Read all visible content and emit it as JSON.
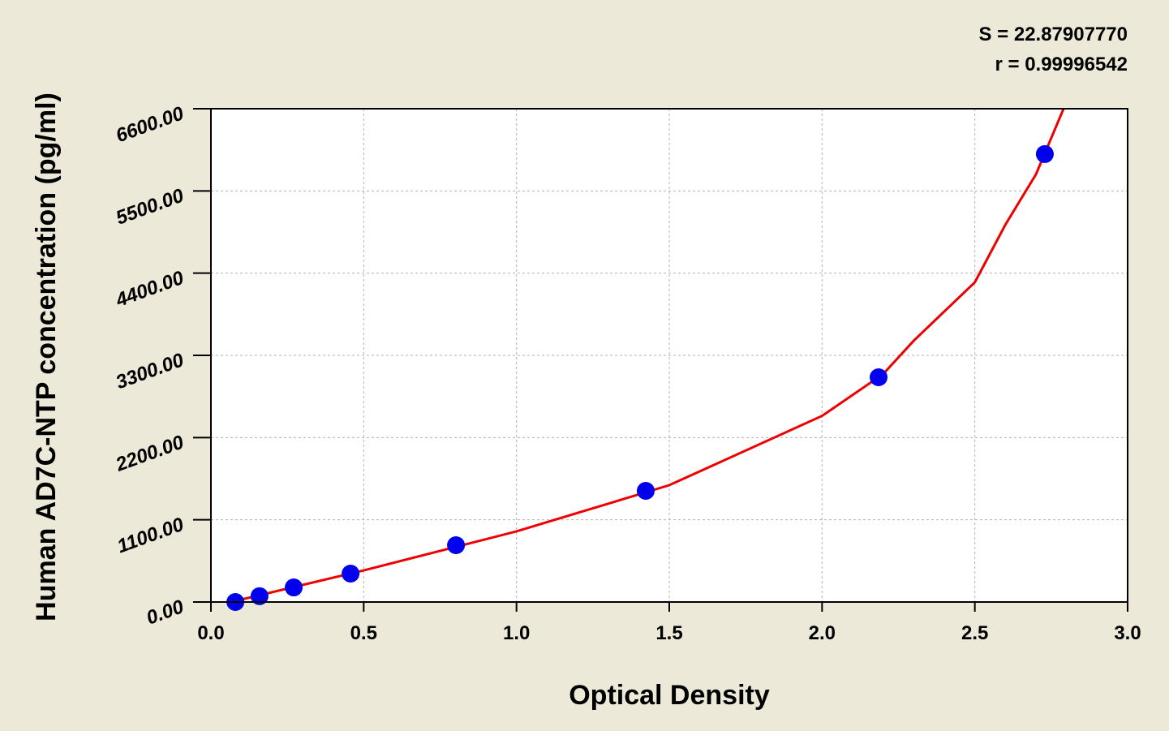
{
  "chart_data": {
    "type": "scatter",
    "annotations": [
      "S = 22.87907770",
      "r = 0.99996542"
    ],
    "x_label": "Optical Density",
    "y_label": "Human  AD7C-NTP concentration (pg/ml)",
    "xlim": [
      0,
      3
    ],
    "ylim": [
      0,
      6600
    ],
    "xticks": [
      {
        "value": 0,
        "label": "0.0"
      },
      0.5,
      {
        "value": 1,
        "label": "1.0"
      },
      1.5,
      {
        "value": 2,
        "label": "2.0"
      },
      2.5,
      {
        "value": 3,
        "label": "3.0"
      }
    ],
    "yticks": [
      {
        "value": 0,
        "label": "0.00"
      },
      {
        "value": 1100,
        "label": "1100.00"
      },
      {
        "value": 2200,
        "label": "2200.00"
      },
      {
        "value": 3300,
        "label": "3300.00"
      },
      {
        "value": 4400,
        "label": "4400.00"
      },
      {
        "value": 5500,
        "label": "5500.00"
      },
      {
        "value": 6600,
        "label": "6600.00"
      }
    ],
    "grid": true,
    "series": [
      {
        "color": "#0000ee",
        "x": [
          0.08,
          0.159,
          0.271,
          0.457,
          0.802,
          1.423,
          2.185,
          2.729
        ],
        "values": [
          0,
          78,
          195,
          380,
          760,
          1487,
          3007,
          5993
        ]
      },
      {
        "color": "#ee0000",
        "line": true,
        "x": [
          0.066,
          0.5,
          1.0,
          1.5,
          2.0,
          2.2,
          2.3,
          2.5,
          2.6,
          2.7,
          2.795
        ],
        "values": [
          0,
          423,
          945,
          1563,
          2490,
          3050,
          3496,
          4278,
          5049,
          5722,
          6645
        ]
      }
    ]
  }
}
